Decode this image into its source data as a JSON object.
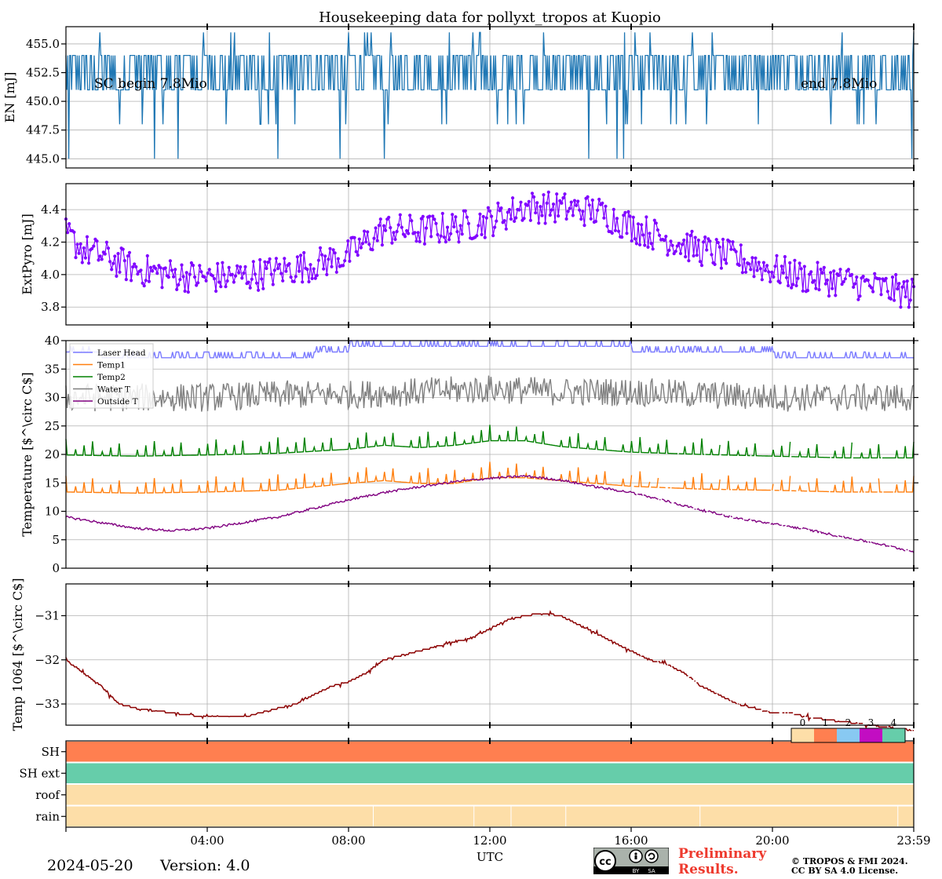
{
  "chart_data": [
    {
      "type": "line",
      "title": "Housekeeping data for pollyxt_tropos at Kuopio",
      "ylabel": "EN [mJ]",
      "ylim": [
        444.2,
        456.5
      ],
      "yticks": [
        "445.0",
        "447.5",
        "450.0",
        "452.5",
        "455.0"
      ],
      "xlim": [
        0,
        24
      ],
      "annotations": [
        "SC begin 7.8Mio",
        "end 7.8Mio"
      ],
      "series": [
        {
          "color": "#1f77b4",
          "levels": [
            445.0,
            448.0,
            451.0,
            454.0,
            456.0
          ],
          "typical_range": [
            451.0,
            454.0
          ],
          "x": [
            0,
            24
          ],
          "y": [
            451.0,
            454.0
          ]
        }
      ]
    },
    {
      "type": "line",
      "ylabel": "ExtPyro [mJ]",
      "ylim": [
        3.69,
        4.56
      ],
      "yticks": [
        "3.8",
        "4.0",
        "4.2",
        "4.4"
      ],
      "xlim": [
        0,
        24
      ],
      "series": [
        {
          "color": "#8000ff",
          "marker": "dot",
          "x": [
            0,
            0.5,
            1,
            2,
            3,
            4,
            5,
            6,
            7,
            8,
            8.5,
            9,
            10,
            11,
            12,
            13,
            14,
            15,
            16,
            17,
            18,
            19,
            20,
            21,
            22,
            23,
            24
          ],
          "y": [
            4.25,
            4.15,
            4.12,
            4.03,
            4.0,
            3.98,
            3.99,
            4.02,
            4.06,
            4.12,
            4.2,
            4.28,
            4.27,
            4.29,
            4.33,
            4.42,
            4.41,
            4.39,
            4.3,
            4.22,
            4.15,
            4.1,
            4.03,
            3.98,
            3.96,
            3.92,
            3.88
          ]
        }
      ]
    },
    {
      "type": "line",
      "ylabel": "Temperature [$^\\circ C$]",
      "ylim": [
        0,
        40
      ],
      "yticks": [
        "0",
        "5",
        "10",
        "15",
        "20",
        "25",
        "30",
        "35",
        "40"
      ],
      "xlim": [
        0,
        24
      ],
      "legend": "upper-left",
      "series": [
        {
          "name": "Laser Head",
          "color": "#7b7bff",
          "x": [
            0,
            2,
            5,
            7,
            8,
            10,
            12,
            14,
            16,
            18,
            20,
            22,
            24
          ],
          "y": [
            38,
            37,
            37,
            37.5,
            38.5,
            38.5,
            39,
            39,
            38.5,
            38,
            37.5,
            37,
            37
          ]
        },
        {
          "name": "Temp1",
          "color": "#ff7f0e",
          "x": [
            0,
            2,
            4,
            6,
            8,
            9,
            10,
            11,
            12,
            13,
            14,
            16,
            18,
            20,
            22,
            24
          ],
          "y": [
            14,
            13.8,
            14,
            14.3,
            15.5,
            16,
            15.5,
            15.5,
            16.5,
            16.5,
            16,
            15,
            14.5,
            14.3,
            14,
            14
          ]
        },
        {
          "name": "Temp2",
          "color": "#008000",
          "x": [
            0,
            2,
            4,
            6,
            8,
            9,
            10,
            11,
            12,
            13,
            14,
            16,
            18,
            20,
            22,
            24
          ],
          "y": [
            20.5,
            20.3,
            20.5,
            20.8,
            21.5,
            22.2,
            21.8,
            22.2,
            23,
            23,
            22,
            21,
            20.6,
            20.3,
            20,
            20
          ]
        },
        {
          "name": "Water T",
          "color": "#808080",
          "x": [
            0,
            2,
            4,
            6,
            8,
            10,
            12,
            14,
            16,
            18,
            20,
            22,
            24
          ],
          "y": [
            30,
            30,
            30,
            30.5,
            30.5,
            31,
            31.5,
            31,
            31,
            30.5,
            30,
            30,
            30
          ]
        },
        {
          "name": "Outside T",
          "color": "#800080",
          "x": [
            0,
            1,
            2,
            3,
            4,
            5,
            6,
            7,
            8,
            9,
            10,
            11,
            12,
            13,
            14,
            15,
            16,
            17,
            18,
            19,
            20,
            21,
            22,
            23,
            24
          ],
          "y": [
            9,
            8,
            7,
            6.6,
            7,
            8,
            9,
            10.5,
            12,
            13.3,
            14.3,
            15.2,
            15.8,
            16.2,
            15.5,
            14.3,
            13.3,
            11.8,
            10.2,
            8.8,
            7.8,
            6.8,
            5.5,
            4.3,
            2.9
          ]
        }
      ]
    },
    {
      "type": "line",
      "ylabel": "Temp 1064 [$^\\circ C$]",
      "ylim": [
        -33.48,
        -30.28
      ],
      "yticks": [
        "−33",
        "−32",
        "−31"
      ],
      "xlim": [
        0,
        24
      ],
      "series": [
        {
          "color": "#8b0000",
          "x": [
            0,
            0.5,
            1,
            1.5,
            2,
            3,
            4,
            5,
            5.5,
            6,
            6.5,
            7,
            7.5,
            8,
            8.5,
            9,
            9.5,
            10,
            10.5,
            11,
            11.5,
            12,
            12.5,
            13,
            13.5,
            14,
            14.5,
            15,
            15.5,
            16,
            16.5,
            17,
            17.5,
            18,
            18.5,
            19,
            19.5,
            20,
            20.5,
            21,
            21.5,
            22,
            22.5,
            23,
            23.5,
            24
          ],
          "y": [
            -32,
            -32.3,
            -32.6,
            -33,
            -33.1,
            -33.2,
            -33.3,
            -33.3,
            -33.2,
            -33.1,
            -33,
            -32.8,
            -32.6,
            -32.5,
            -32.3,
            -32,
            -31.9,
            -31.8,
            -31.7,
            -31.6,
            -31.5,
            -31.3,
            -31.1,
            -31,
            -30.95,
            -31.0,
            -31.2,
            -31.4,
            -31.6,
            -31.8,
            -32,
            -32.1,
            -32.3,
            -32.6,
            -32.8,
            -33,
            -33.1,
            -33.2,
            -33.2,
            -33.3,
            -33.35,
            -33.4,
            -33.45,
            -33.5,
            -33.55,
            -33.6
          ]
        }
      ]
    },
    {
      "type": "heatmap",
      "rows": [
        "SH",
        "SH ext",
        "roof",
        "rain"
      ],
      "colorbar_ticks": [
        "0",
        "1",
        "2",
        "3",
        "4"
      ],
      "colorbar_colors": [
        "#fddea8",
        "#ff7f50",
        "#88c9f2",
        "#c20dc2",
        "#66cdaa"
      ],
      "row_values": [
        1,
        4,
        0,
        0
      ],
      "xlabel": "UTC",
      "xticks": [
        "04:00",
        "08:00",
        "12:00",
        "16:00",
        "20:00",
        "23:59"
      ],
      "xtick_positions": [
        4,
        8,
        12,
        16,
        20,
        24
      ]
    }
  ],
  "footer": {
    "date": "2024-05-20",
    "version": "Version: 4.0",
    "preliminary": [
      "Preliminary",
      "Results."
    ],
    "copyright": [
      "© TROPOS & FMI 2024.",
      "CC BY SA 4.0 License."
    ],
    "cc_logo": {
      "label": "cc",
      "sub": [
        "BY",
        "SA"
      ]
    }
  }
}
